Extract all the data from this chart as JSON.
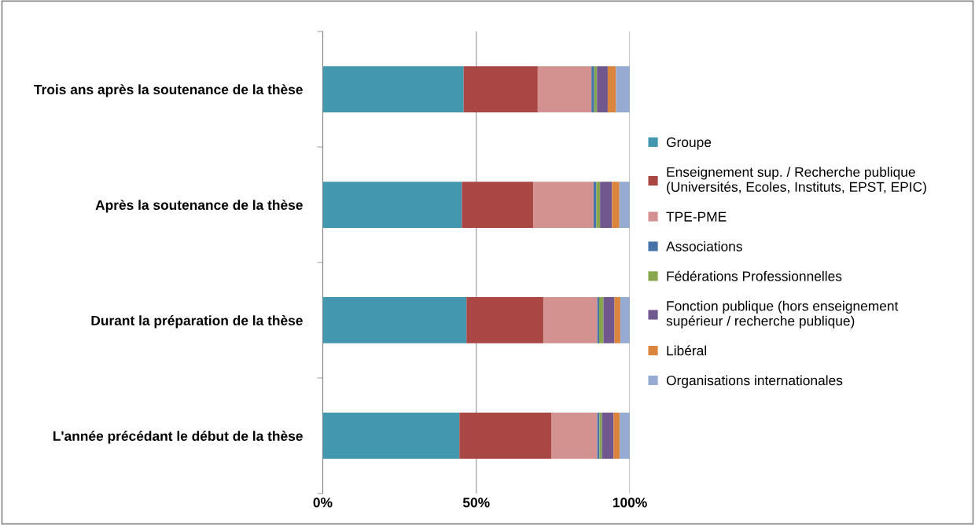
{
  "chart_data": {
    "type": "bar",
    "orientation": "horizontal",
    "stacked": true,
    "categories": [
      "Trois ans après la soutenance de la thèse",
      "Après la soutenance de la thèse",
      "Durant la préparation de la thèse",
      "L'année précédant le début de la thèse"
    ],
    "series": [
      {
        "name": "Groupe",
        "color": "#4398af",
        "values": [
          45.9,
          45.3,
          46.8,
          44.5
        ]
      },
      {
        "name": "Enseignement sup. / Recherche publique\n(Universités, Ecoles, Instituts, EPST, EPIC)",
        "color": "#a94745",
        "values": [
          24.1,
          23.3,
          25.1,
          29.9
        ]
      },
      {
        "name": "TPE-PME",
        "color": "#d39290",
        "values": [
          17.5,
          19.6,
          17.5,
          15.0
        ]
      },
      {
        "name": "Associations",
        "color": "#4673a8",
        "values": [
          0.9,
          0.9,
          0.6,
          0.7
        ]
      },
      {
        "name": "Fédérations Professionnelles",
        "color": "#88a64c",
        "values": [
          0.9,
          1.2,
          1.4,
          0.8
        ]
      },
      {
        "name": "Fonction publique (hors enseignement\nsupérieur / recherche publique)",
        "color": "#70588f",
        "values": [
          3.5,
          3.9,
          3.6,
          3.8
        ]
      },
      {
        "name": "Libéral",
        "color": "#db843d",
        "values": [
          2.7,
          2.4,
          1.9,
          2.0
        ]
      },
      {
        "name": "Organisations internationales",
        "color": "#95abd1",
        "values": [
          4.5,
          3.4,
          3.1,
          3.3
        ]
      }
    ],
    "xlim": [
      0,
      100
    ],
    "xticks": [
      {
        "value": 0,
        "label": "0%"
      },
      {
        "value": 50,
        "label": "50%"
      },
      {
        "value": 100,
        "label": "100%"
      }
    ],
    "grid": "x",
    "legend": "right"
  }
}
